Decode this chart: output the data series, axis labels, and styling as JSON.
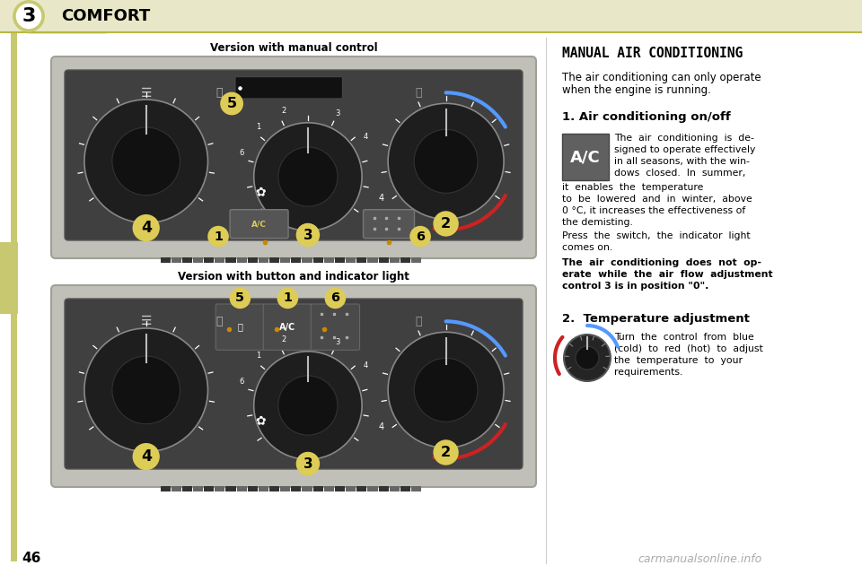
{
  "page_bg": "#ffffff",
  "header_bg": "#e8e8c8",
  "header_tab_bg": "#ffffff",
  "header_tab_border": "#c8c870",
  "chapter_num": "3",
  "chapter_title": "COMFORT",
  "page_number": "46",
  "left_accent_color": "#c8c870",
  "caption1": "Version with manual control",
  "caption2": "Version with button and indicator light",
  "section_title": "MANUAL AIR CONDITIONING",
  "section_intro_line1": "The air conditioning can only operate",
  "section_intro_line2": "when the engine is running.",
  "item1_title": "1. Air conditioning on/off",
  "item2_title": "2.  Temperature adjustment",
  "watermark": "carmanualsonline.info",
  "panel_outer_bg": "#c8c8c0",
  "panel_inner_bg": "#444444",
  "knob_outer": "#252525",
  "knob_inner": "#181818",
  "knob_border": "#777777",
  "blue_arc": "#5599ff",
  "red_arc": "#cc2222",
  "yellow_circle": "#ddcc55",
  "ac_box_bg": "#606060"
}
